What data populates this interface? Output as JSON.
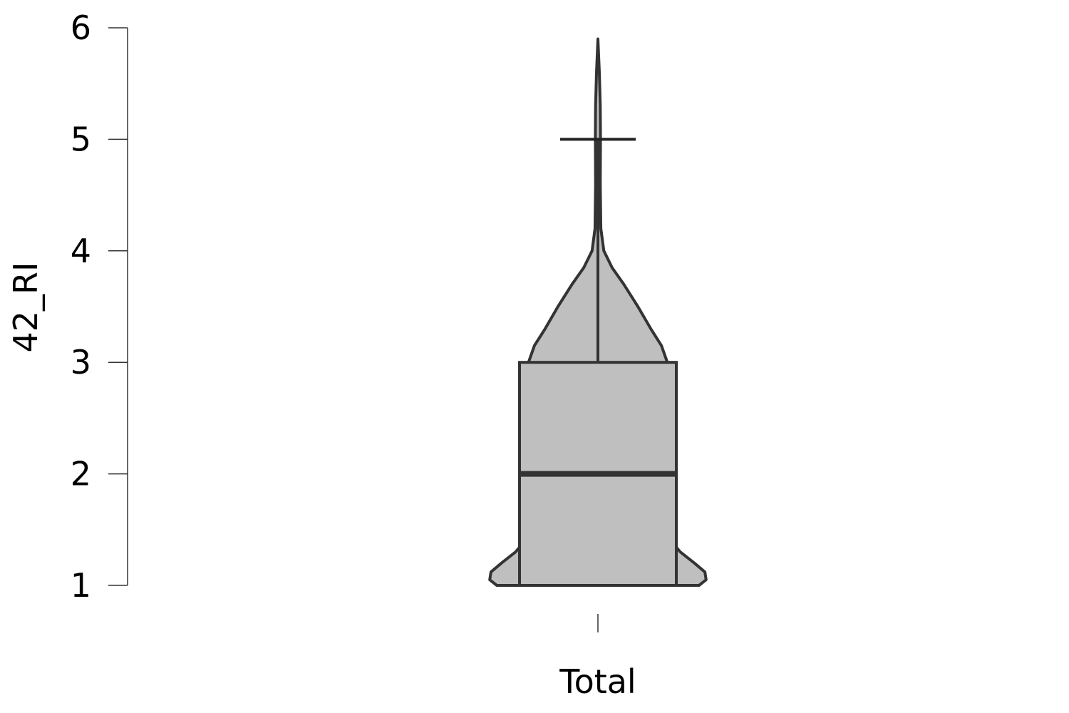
{
  "chart_data": {
    "type": "violin",
    "title": "",
    "xlabel": "",
    "ylabel": "42_RI",
    "categories": [
      "Total"
    ],
    "ylim": [
      1,
      6
    ],
    "yticks": [
      1,
      2,
      3,
      4,
      5,
      6
    ],
    "grid": false,
    "violin_fill": "#bfbfbf",
    "stroke_color": "#333333",
    "box": {
      "min": 1,
      "q1": 1,
      "median": 2,
      "q3": 3,
      "whisker_high": 5,
      "max": 5.9
    },
    "density": [
      {
        "y": 1.0,
        "w": 0.86
      },
      {
        "y": 1.05,
        "w": 0.92
      },
      {
        "y": 1.12,
        "w": 0.91
      },
      {
        "y": 1.2,
        "w": 0.82
      },
      {
        "y": 1.3,
        "w": 0.7
      },
      {
        "y": 1.45,
        "w": 0.58
      },
      {
        "y": 1.6,
        "w": 0.51
      },
      {
        "y": 1.7,
        "w": 0.5
      },
      {
        "y": 1.85,
        "w": 0.53
      },
      {
        "y": 2.0,
        "w": 0.56
      },
      {
        "y": 2.2,
        "w": 0.59
      },
      {
        "y": 2.4,
        "w": 0.62
      },
      {
        "y": 2.55,
        "w": 0.62
      },
      {
        "y": 2.7,
        "w": 0.6
      },
      {
        "y": 2.85,
        "w": 0.58
      },
      {
        "y": 3.0,
        "w": 0.59
      },
      {
        "y": 3.15,
        "w": 0.54
      },
      {
        "y": 3.3,
        "w": 0.45
      },
      {
        "y": 3.5,
        "w": 0.34
      },
      {
        "y": 3.7,
        "w": 0.22
      },
      {
        "y": 3.85,
        "w": 0.12
      },
      {
        "y": 4.0,
        "w": 0.05
      },
      {
        "y": 4.2,
        "w": 0.025
      },
      {
        "y": 4.6,
        "w": 0.02
      },
      {
        "y": 5.0,
        "w": 0.022
      },
      {
        "y": 5.3,
        "w": 0.02
      },
      {
        "y": 5.6,
        "w": 0.012
      },
      {
        "y": 5.9,
        "w": 0.0
      }
    ]
  }
}
